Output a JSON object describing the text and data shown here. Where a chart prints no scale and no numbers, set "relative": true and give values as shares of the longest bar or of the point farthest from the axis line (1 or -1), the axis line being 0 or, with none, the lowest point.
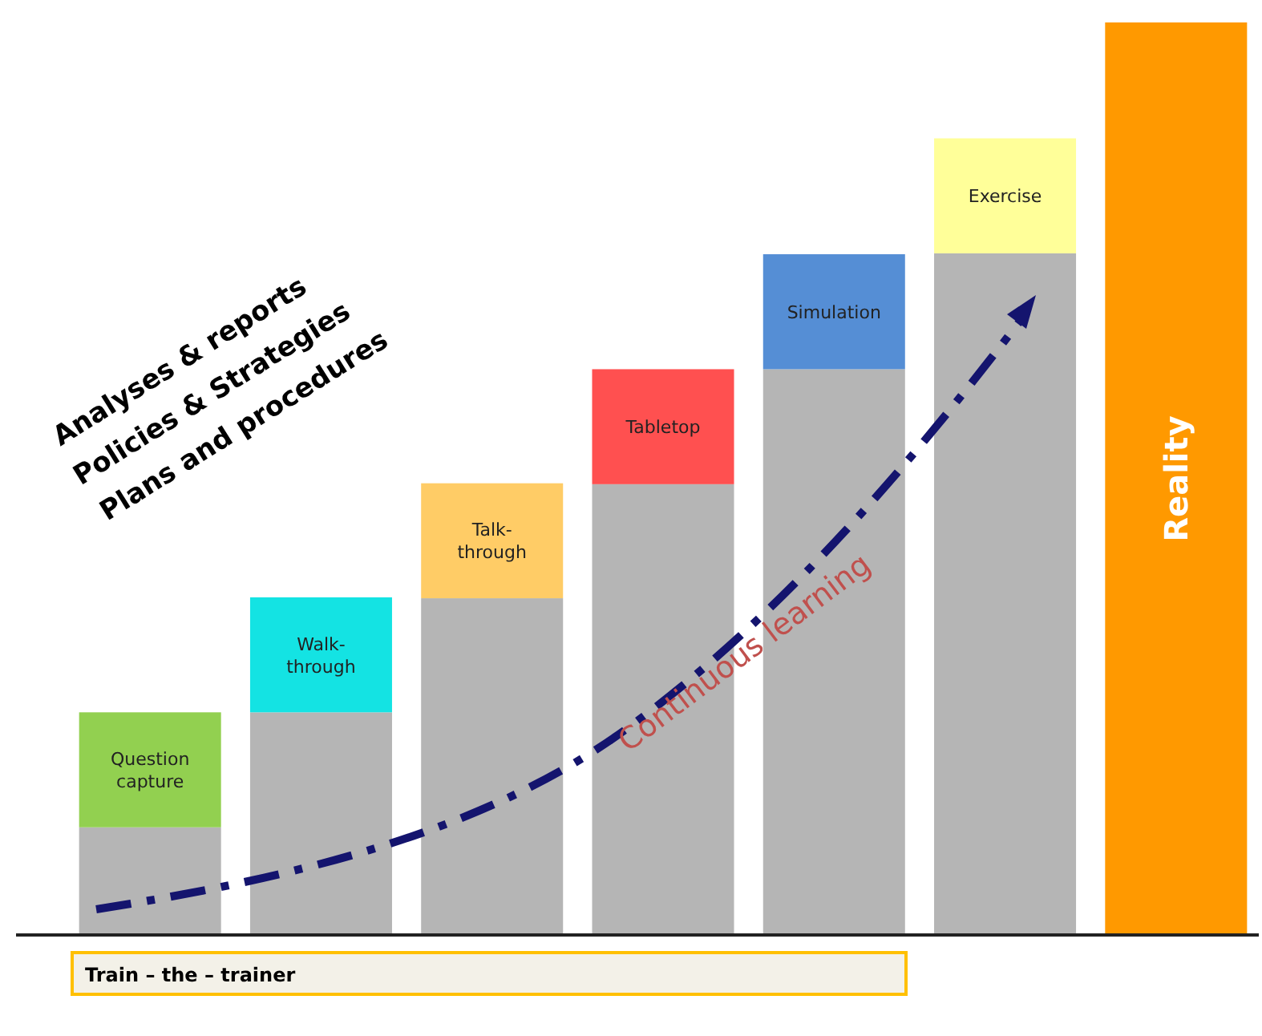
{
  "chart_data": {
    "type": "bar",
    "stacked": true,
    "relative": true,
    "categories": [
      "Question capture",
      "Walk-through",
      "Talk-through",
      "Tabletop",
      "Simulation",
      "Exercise",
      "Reality"
    ],
    "series": [
      {
        "colors": [
          "#b5b5b5",
          "#b5b5b5",
          "#b5b5b5",
          "#b5b5b5",
          "#b5b5b5",
          "#b5b5b5",
          "#b5b5b5"
        ],
        "values": [
          0.118,
          0.244,
          0.369,
          0.494,
          0.62,
          0.747,
          0
        ]
      },
      {
        "colors": [
          "#92d050",
          "#14e3e3",
          "#ffcc66",
          "#ff5050",
          "#558ed5",
          "#ffff99",
          "#ff9900"
        ],
        "values": [
          0.126,
          0.126,
          0.126,
          0.126,
          0.126,
          0.126,
          1
        ]
      }
    ],
    "annotations": [
      "Analyses & reports",
      "Policies & Strategies",
      "Plans and procedures",
      "Continuous learning",
      "Train – the – trainer"
    ]
  }
}
